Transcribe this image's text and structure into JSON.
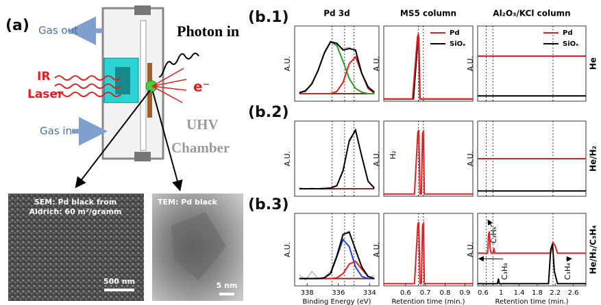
{
  "panel_a": {
    "label": "(a)",
    "gas_out": "Gas out",
    "gas_in": "Gas in",
    "photon_in": "Photon in",
    "ir": "IR",
    "laser": "Laser",
    "electron": "e⁻",
    "uhv": "UHV",
    "chamber": "Chamber",
    "sem": {
      "caption": [
        "SEM: Pd black from",
        "Aldrich: 60 m²/gramm"
      ],
      "scale": "500 nm"
    },
    "tem": {
      "caption": "TEM: Pd black",
      "scale": "5 nm"
    }
  },
  "row_labels": [
    "(b.1)",
    "(b.2)",
    "(b.3)"
  ],
  "column_titles": [
    "Pd 3d",
    "MS5 column",
    "Al₂O₃/KCl column"
  ],
  "side_labels": [
    "He",
    "He/H₂",
    "He/H₂/C₃H₄"
  ],
  "chart_data": [
    {
      "type": "line",
      "ylabel": "A.U.",
      "xlim": [
        338.8,
        333.4
      ],
      "ylim": [
        0,
        1
      ],
      "vlines": [
        336.4,
        335.6,
        335.0
      ],
      "series": [
        {
          "color": "#9a9a9a",
          "x": [
            338.5,
            338.1,
            337.7,
            337.3,
            336.9,
            336.5,
            336.1,
            335.7,
            335.3,
            334.9,
            334.5,
            334.1,
            333.7
          ],
          "values": [
            0.13,
            0.12,
            0.25,
            0.39,
            0.66,
            0.8,
            0.75,
            0.7,
            0.72,
            0.66,
            0.36,
            0.2,
            0.1
          ]
        },
        {
          "color": "#8b2a2a",
          "x": [
            338.5,
            333.7
          ],
          "values": [
            0.1,
            0.1
          ]
        },
        {
          "color": "#2a9a2a",
          "x": [
            338.5,
            338.1,
            337.7,
            337.3,
            336.9,
            336.5,
            336.1,
            335.7,
            335.3,
            334.9,
            334.5,
            334.1,
            333.7
          ],
          "values": [
            0.11,
            0.14,
            0.23,
            0.41,
            0.64,
            0.79,
            0.74,
            0.53,
            0.3,
            0.17,
            0.12,
            0.1,
            0.1
          ]
        },
        {
          "color": "#e02020",
          "x": [
            338.5,
            338.1,
            337.7,
            337.3,
            336.9,
            336.5,
            336.1,
            335.7,
            335.3,
            334.9,
            334.5,
            334.1,
            333.7
          ],
          "values": [
            0.1,
            0.1,
            0.1,
            0.1,
            0.1,
            0.1,
            0.13,
            0.25,
            0.5,
            0.59,
            0.37,
            0.17,
            0.11
          ]
        },
        {
          "color": "#000000",
          "x": [
            338.5,
            338.1,
            337.7,
            337.3,
            336.9,
            336.5,
            336.1,
            335.7,
            335.3,
            334.9,
            334.5,
            334.1,
            333.7
          ],
          "values": [
            0.11,
            0.14,
            0.23,
            0.41,
            0.64,
            0.79,
            0.77,
            0.68,
            0.7,
            0.68,
            0.37,
            0.19,
            0.12
          ]
        }
      ]
    },
    {
      "type": "line",
      "ylabel": "A.U.",
      "xlim": [
        0.49,
        0.94
      ],
      "ylim": [
        0,
        1
      ],
      "vlines": [
        0.665,
        0.69
      ],
      "legend": "upper right",
      "series": [
        {
          "name": "SiOₓ",
          "color": "#000000",
          "x": [
            0.49,
            0.64,
            0.662,
            0.667,
            0.673,
            0.94
          ],
          "values": [
            0.03,
            0.03,
            0.8,
            0.86,
            0.03,
            0.03
          ]
        },
        {
          "name": "Pd",
          "color": "#e02020",
          "x": [
            0.49,
            0.635,
            0.66,
            0.665,
            0.672,
            0.94
          ],
          "values": [
            0.03,
            0.03,
            0.85,
            0.9,
            0.03,
            0.03
          ]
        }
      ]
    },
    {
      "type": "line",
      "ylabel": "A.U.",
      "xlim": [
        0.48,
        2.88
      ],
      "ylim": [
        0,
        1
      ],
      "vlines": [
        0.67,
        0.82,
        2.15
      ],
      "legend": "upper right",
      "series": [
        {
          "name": "Pd",
          "color": "#e02020",
          "x": [
            0.48,
            2.88
          ],
          "values": [
            0.6,
            0.6
          ]
        },
        {
          "name": "SiOₓ",
          "color": "#000000",
          "x": [
            0.48,
            2.88
          ],
          "values": [
            0.07,
            0.07
          ]
        }
      ]
    },
    {
      "type": "line",
      "ylabel": "A.U.",
      "xlim": [
        338.8,
        333.4
      ],
      "ylim": [
        0,
        1
      ],
      "vlines": [
        336.4,
        335.6,
        335.0
      ],
      "series": [
        {
          "color": "#9a9a9a",
          "x": [
            338.5,
            338.1,
            337.7,
            337.3,
            336.9,
            336.5,
            336.1,
            335.7,
            335.3,
            334.9,
            334.5,
            334.1,
            333.7
          ],
          "values": [
            0.12,
            0.09,
            0.11,
            0.1,
            0.12,
            0.11,
            0.15,
            0.36,
            0.72,
            0.86,
            0.55,
            0.21,
            0.1
          ]
        },
        {
          "color": "#8b2a2a",
          "x": [
            338.5,
            333.7
          ],
          "values": [
            0.1,
            0.1
          ]
        },
        {
          "color": "#000000",
          "x": [
            338.5,
            338.1,
            337.7,
            337.3,
            336.9,
            336.5,
            336.1,
            335.7,
            335.3,
            334.9,
            334.5,
            334.1,
            333.7
          ],
          "values": [
            0.1,
            0.1,
            0.1,
            0.1,
            0.1,
            0.11,
            0.14,
            0.34,
            0.74,
            0.88,
            0.53,
            0.2,
            0.11
          ]
        }
      ]
    },
    {
      "type": "line",
      "ylabel": "A.U.",
      "xlim": [
        0.49,
        0.94
      ],
      "ylim": [
        0,
        1
      ],
      "vlines": [
        0.665,
        0.69
      ],
      "annotations": [
        "H₂"
      ],
      "series": [
        {
          "color": "#e02020",
          "x": [
            0.49,
            0.645,
            0.662,
            0.667,
            0.673,
            0.68,
            0.686,
            0.69,
            0.695,
            0.94
          ],
          "values": [
            0.03,
            0.03,
            0.85,
            0.88,
            0.03,
            0.03,
            0.84,
            0.86,
            0.03,
            0.03
          ]
        }
      ]
    },
    {
      "type": "line",
      "ylabel": "A.U.",
      "xlim": [
        0.48,
        2.88
      ],
      "ylim": [
        0,
        1
      ],
      "vlines": [
        0.67,
        0.82,
        2.15
      ],
      "series": [
        {
          "color": "#e02020",
          "x": [
            0.48,
            2.88
          ],
          "values": [
            0.5,
            0.5
          ]
        },
        {
          "color": "#000000",
          "x": [
            0.48,
            2.88
          ],
          "values": [
            0.07,
            0.07
          ]
        }
      ]
    },
    {
      "type": "line",
      "ylabel": "A.U.",
      "xlabel": "Binding Energy (eV)",
      "xlim": [
        338.8,
        333.4
      ],
      "ylim": [
        0,
        1
      ],
      "xticks": [
        338,
        336,
        334
      ],
      "vlines": [
        336.4,
        335.6,
        335.0
      ],
      "series": [
        {
          "color": "#9a9a9a",
          "x": [
            338.5,
            338.1,
            337.7,
            337.3,
            336.9,
            336.5,
            336.1,
            335.7,
            335.3,
            334.9,
            334.5,
            334.1,
            333.7
          ],
          "values": [
            0.15,
            0.08,
            0.2,
            0.1,
            0.12,
            0.2,
            0.43,
            0.7,
            0.76,
            0.47,
            0.28,
            0.1,
            0.14
          ]
        },
        {
          "color": "#8b2a2a",
          "x": [
            338.5,
            333.7
          ],
          "values": [
            0.1,
            0.1
          ]
        },
        {
          "color": "#1f3fe0",
          "x": [
            338.5,
            338.1,
            337.7,
            337.3,
            336.9,
            336.5,
            336.1,
            335.7,
            335.3,
            334.9,
            334.5,
            334.1,
            333.7
          ],
          "values": [
            0.1,
            0.1,
            0.1,
            0.1,
            0.11,
            0.17,
            0.4,
            0.64,
            0.54,
            0.26,
            0.13,
            0.1,
            0.1
          ]
        },
        {
          "color": "#e02020",
          "x": [
            338.5,
            338.1,
            337.7,
            337.3,
            336.9,
            336.5,
            336.1,
            335.7,
            335.3,
            334.9,
            334.5,
            334.1,
            333.7
          ],
          "values": [
            0.1,
            0.1,
            0.1,
            0.1,
            0.1,
            0.1,
            0.11,
            0.17,
            0.3,
            0.34,
            0.23,
            0.13,
            0.1
          ]
        },
        {
          "color": "#000000",
          "x": [
            338.5,
            338.1,
            337.7,
            337.3,
            336.9,
            336.5,
            336.1,
            335.7,
            335.3,
            334.9,
            334.5,
            334.1,
            333.7
          ],
          "values": [
            0.1,
            0.1,
            0.1,
            0.1,
            0.11,
            0.17,
            0.41,
            0.71,
            0.74,
            0.5,
            0.26,
            0.13,
            0.1
          ]
        }
      ]
    },
    {
      "type": "line",
      "ylabel": "A.U.",
      "xlabel": "Retention time (min.)",
      "xlim": [
        0.49,
        0.94
      ],
      "ylim": [
        0,
        1
      ],
      "xticks": [
        0.6,
        0.7,
        0.8,
        0.9
      ],
      "vlines": [
        0.665,
        0.69
      ],
      "series": [
        {
          "color": "#e02020",
          "x": [
            0.49,
            0.645,
            0.662,
            0.667,
            0.673,
            0.68,
            0.686,
            0.69,
            0.695,
            0.94
          ],
          "values": [
            0.03,
            0.03,
            0.85,
            0.88,
            0.03,
            0.03,
            0.84,
            0.86,
            0.03,
            0.03
          ]
        }
      ]
    },
    {
      "type": "line",
      "ylabel": "A.U.",
      "xlabel": "Retention time (min.)",
      "xlim": [
        0.48,
        2.88
      ],
      "ylim": [
        0,
        1
      ],
      "xticks": [
        0.6,
        1.0,
        1.4,
        1.8,
        2.2,
        2.6
      ],
      "vlines": [
        0.67,
        0.82,
        2.15
      ],
      "annotations": [
        "C₃H₆",
        "C₃H₈",
        "C₃H₄"
      ],
      "series": [
        {
          "color": "#e02020",
          "x": [
            0.48,
            0.7,
            0.72,
            0.74,
            0.76,
            0.78,
            0.82,
            0.84,
            0.86,
            2.1,
            2.15,
            2.2,
            2.25,
            2.88
          ],
          "values": [
            0.45,
            0.45,
            0.7,
            0.75,
            0.5,
            0.45,
            0.45,
            0.52,
            0.45,
            0.45,
            0.6,
            0.55,
            0.45,
            0.45
          ]
        },
        {
          "color": "#000000",
          "x": [
            0.48,
            0.92,
            0.94,
            0.96,
            2.05,
            2.1,
            2.14,
            2.18,
            2.25,
            2.88
          ],
          "values": [
            0.03,
            0.03,
            0.1,
            0.03,
            0.03,
            0.5,
            0.58,
            0.2,
            0.03,
            0.03
          ]
        }
      ]
    }
  ]
}
